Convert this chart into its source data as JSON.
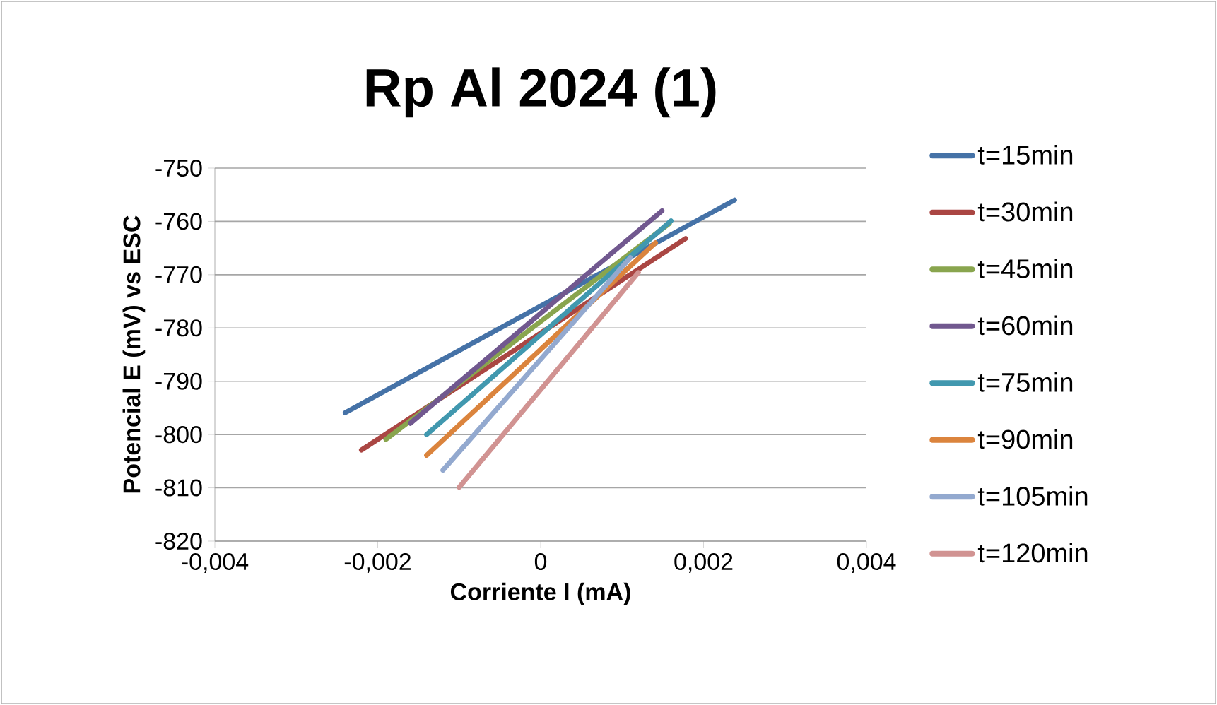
{
  "chart_data": {
    "type": "line",
    "title": "Rp Al 2024 (1)",
    "xlabel": "Corriente I (mA)",
    "ylabel": "Potencial E (mV) vs ESC",
    "xlim": [
      -0.004,
      0.004
    ],
    "ylim": [
      -820,
      -750
    ],
    "xticks": [
      {
        "value": -0.004,
        "label": "-0,004"
      },
      {
        "value": -0.002,
        "label": "-0,002"
      },
      {
        "value": 0,
        "label": "0"
      },
      {
        "value": 0.002,
        "label": "0,002"
      },
      {
        "value": 0.004,
        "label": "0,004"
      }
    ],
    "yticks": [
      -820,
      -810,
      -800,
      -790,
      -780,
      -770,
      -760,
      -750
    ],
    "grid": "y",
    "legend": "right",
    "line_style": "solid",
    "series": [
      {
        "name": "t=15min",
        "color": "#4572a7",
        "x": [
          -0.0024,
          0.00238
        ],
        "values": [
          -795.9,
          -756
        ]
      },
      {
        "name": "t=30min",
        "color": "#aa4643",
        "x": [
          -0.0022,
          0.00178
        ],
        "values": [
          -802.9,
          -763.2
        ]
      },
      {
        "name": "t=45min",
        "color": "#89a54e",
        "x": [
          -0.0019,
          0.00158
        ],
        "values": [
          -800.9,
          -760.4
        ]
      },
      {
        "name": "t=60min",
        "color": "#71588f",
        "x": [
          -0.0016,
          0.00149
        ],
        "values": [
          -797.9,
          -758
        ]
      },
      {
        "name": "t=75min",
        "color": "#4198af",
        "x": [
          -0.0014,
          0.0016
        ],
        "values": [
          -800,
          -759.9
        ]
      },
      {
        "name": "t=90min",
        "color": "#db843d",
        "x": [
          -0.0014,
          0.00141
        ],
        "values": [
          -803.9,
          -764
        ]
      },
      {
        "name": "t=105min",
        "color": "#93a9cf",
        "x": [
          -0.0012,
          0.0011
        ],
        "values": [
          -806.7,
          -766.8
        ]
      },
      {
        "name": "t=120min",
        "color": "#d19392",
        "x": [
          -0.001,
          0.0012
        ],
        "values": [
          -809.9,
          -769.6
        ]
      }
    ]
  }
}
